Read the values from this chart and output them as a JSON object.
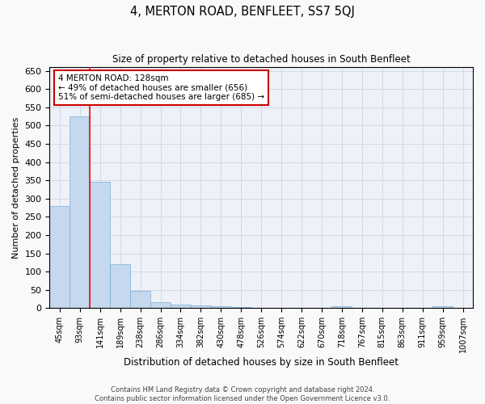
{
  "title": "4, MERTON ROAD, BENFLEET, SS7 5QJ",
  "subtitle": "Size of property relative to detached houses in South Benfleet",
  "xlabel": "Distribution of detached houses by size in South Benfleet",
  "ylabel": "Number of detached properties",
  "categories": [
    "45sqm",
    "93sqm",
    "141sqm",
    "189sqm",
    "238sqm",
    "286sqm",
    "334sqm",
    "382sqm",
    "430sqm",
    "478sqm",
    "526sqm",
    "574sqm",
    "622sqm",
    "670sqm",
    "718sqm",
    "767sqm",
    "815sqm",
    "863sqm",
    "911sqm",
    "959sqm",
    "1007sqm"
  ],
  "values": [
    280,
    525,
    345,
    120,
    48,
    17,
    10,
    8,
    5,
    2,
    1,
    0,
    0,
    0,
    5,
    0,
    0,
    0,
    0,
    5,
    0
  ],
  "bar_color": "#c5d8ed",
  "bar_edge_color": "#7aadd4",
  "ylim": [
    0,
    660
  ],
  "yticks": [
    0,
    50,
    100,
    150,
    200,
    250,
    300,
    350,
    400,
    450,
    500,
    550,
    600,
    650
  ],
  "property_line_x": 1.5,
  "annotation_text": "4 MERTON ROAD: 128sqm\n← 49% of detached houses are smaller (656)\n51% of semi-detached houses are larger (685) →",
  "annotation_box_color": "#ffffff",
  "annotation_box_edge": "#cc0000",
  "footer_line1": "Contains HM Land Registry data © Crown copyright and database right 2024.",
  "footer_line2": "Contains public sector information licensed under the Open Government Licence v3.0.",
  "grid_color": "#d0d8e8",
  "background_color": "#eef2f8",
  "fig_bg_color": "#f9f9f9"
}
